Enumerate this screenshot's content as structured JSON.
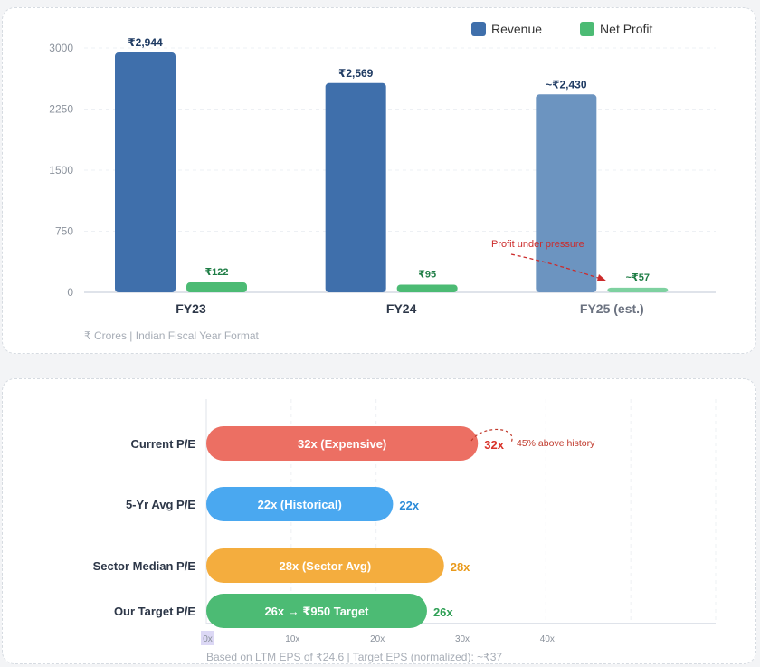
{
  "revenue_chart": {
    "legend": [
      {
        "name": "Revenue",
        "color": "#3f6fab"
      },
      {
        "name": "Net Profit",
        "color": "#4cbb74"
      }
    ],
    "footnote": "₹ Crores | Indian Fiscal Year Format",
    "annotation": "Profit under pressure",
    "annotation_color": "#cc2b2b"
  },
  "pe_chart": {
    "footnote": "Based on LTM EPS of ₹24.6 | Target EPS (normalized): ~₹37",
    "annotation": "45% above history",
    "annotation_color": "#c0392b"
  },
  "chart_data": [
    {
      "type": "bar",
      "title": "",
      "xlabel": "",
      "ylabel": "",
      "categories": [
        "FY23",
        "FY24",
        "FY25 (est.)"
      ],
      "series": [
        {
          "name": "Revenue",
          "values": [
            2944,
            2569,
            2430
          ],
          "labels": [
            "₹2,944",
            "₹2,569",
            "~₹2,430"
          ],
          "color": "#3f6fab",
          "estimate_color": "#6c94c0"
        },
        {
          "name": "Net Profit",
          "values": [
            122,
            95,
            57
          ],
          "labels": [
            "₹122",
            "₹95",
            "~₹57"
          ],
          "color": "#4cbb74",
          "estimate_color": "#7ed1a0"
        }
      ],
      "yticks": [
        0,
        750,
        1500,
        2250,
        3000
      ],
      "ytick_labels": [
        "0",
        "750",
        "1500",
        "2250",
        "3000"
      ],
      "ylim": [
        0,
        3000
      ],
      "grid": true,
      "legend_position": "top-right"
    },
    {
      "type": "bar",
      "orientation": "horizontal",
      "title": "",
      "categories": [
        "Current P/E",
        "5-Yr Avg P/E",
        "Sector Median P/E",
        "Our Target P/E"
      ],
      "values": [
        32,
        22,
        28,
        26
      ],
      "bar_labels": [
        "32x (Expensive)",
        "22x (Historical)",
        "28x (Sector Avg)",
        "26x → ₹950 Target"
      ],
      "value_labels": [
        "32x",
        "22x",
        "28x",
        "26x"
      ],
      "colors": [
        "#ec6f63",
        "#4aa8f0",
        "#f4ad3e",
        "#4cbb74"
      ],
      "value_label_colors": [
        "#d9342b",
        "#2b8bd8",
        "#e99a1c",
        "#2fa055"
      ],
      "xticks": [
        0,
        10,
        20,
        30,
        40
      ],
      "xtick_labels": [
        "0x",
        "10x",
        "20x",
        "30x",
        "40x"
      ],
      "xlim": [
        0,
        60
      ],
      "grid": true
    }
  ]
}
